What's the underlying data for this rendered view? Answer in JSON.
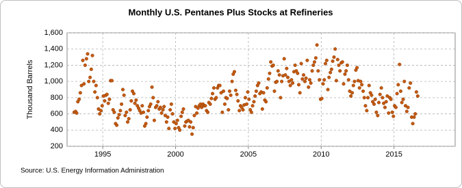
{
  "chart_data": {
    "type": "scatter",
    "title": "Monthly U.S. Pentanes Plus Stocks at Refineries",
    "y_label": "Thousand Barrels",
    "source": "Source: U.S. Energy Information Administration",
    "xlim": [
      1992.55,
      2019.2
    ],
    "xticks": [
      1995,
      2000,
      2005,
      2010,
      2015
    ],
    "ylim": [
      200,
      1600
    ],
    "yticks": [
      200,
      400,
      600,
      800,
      {
        "value": 1000,
        "label": "1,000"
      },
      {
        "value": 1200,
        "label": "1,200"
      },
      {
        "value": 1400,
        "label": "1,400"
      },
      {
        "value": 1600,
        "label": "1,600"
      }
    ],
    "grid": true,
    "color": "#c55a11",
    "x": [
      1993.04,
      1993.13,
      1993.21,
      1993.29,
      1993.38,
      1993.46,
      1993.54,
      1993.63,
      1993.71,
      1993.79,
      1993.88,
      1993.96,
      1994.04,
      1994.13,
      1994.21,
      1994.29,
      1994.38,
      1994.46,
      1994.54,
      1994.63,
      1994.71,
      1994.79,
      1994.88,
      1994.96,
      1995.04,
      1995.13,
      1995.21,
      1995.29,
      1995.38,
      1995.46,
      1995.54,
      1995.63,
      1995.71,
      1995.79,
      1995.88,
      1995.96,
      1996.04,
      1996.13,
      1996.21,
      1996.29,
      1996.38,
      1996.46,
      1996.54,
      1996.63,
      1996.71,
      1996.79,
      1996.88,
      1996.96,
      1997.04,
      1997.13,
      1997.21,
      1997.29,
      1997.38,
      1997.46,
      1997.54,
      1997.63,
      1997.71,
      1997.79,
      1997.88,
      1997.96,
      1998.04,
      1998.13,
      1998.21,
      1998.29,
      1998.38,
      1998.46,
      1998.54,
      1998.63,
      1998.71,
      1998.79,
      1998.88,
      1998.96,
      1999.04,
      1999.13,
      1999.21,
      1999.29,
      1999.38,
      1999.46,
      1999.54,
      1999.63,
      1999.71,
      1999.79,
      1999.88,
      1999.96,
      2000.04,
      2000.13,
      2000.21,
      2000.29,
      2000.38,
      2000.46,
      2000.54,
      2000.63,
      2000.71,
      2000.79,
      2000.88,
      2000.96,
      2001.04,
      2001.13,
      2001.21,
      2001.29,
      2001.38,
      2001.46,
      2001.54,
      2001.63,
      2001.71,
      2001.79,
      2001.88,
      2001.96,
      2002.04,
      2002.13,
      2002.21,
      2002.29,
      2002.38,
      2002.46,
      2002.54,
      2002.63,
      2002.71,
      2002.79,
      2002.88,
      2002.96,
      2003.04,
      2003.13,
      2003.21,
      2003.29,
      2003.38,
      2003.46,
      2003.54,
      2003.63,
      2003.71,
      2003.79,
      2003.88,
      2003.96,
      2004.04,
      2004.13,
      2004.21,
      2004.29,
      2004.38,
      2004.46,
      2004.54,
      2004.63,
      2004.71,
      2004.79,
      2004.88,
      2004.96,
      2005.04,
      2005.13,
      2005.21,
      2005.29,
      2005.38,
      2005.46,
      2005.54,
      2005.63,
      2005.71,
      2005.79,
      2005.88,
      2005.96,
      2006.04,
      2006.13,
      2006.21,
      2006.29,
      2006.38,
      2006.46,
      2006.54,
      2006.63,
      2006.71,
      2006.79,
      2006.88,
      2006.96,
      2007.04,
      2007.13,
      2007.21,
      2007.29,
      2007.38,
      2007.46,
      2007.54,
      2007.63,
      2007.71,
      2007.79,
      2007.88,
      2007.96,
      2008.04,
      2008.13,
      2008.21,
      2008.29,
      2008.38,
      2008.46,
      2008.54,
      2008.63,
      2008.71,
      2008.79,
      2008.88,
      2008.96,
      2009.04,
      2009.13,
      2009.21,
      2009.29,
      2009.38,
      2009.46,
      2009.54,
      2009.63,
      2009.71,
      2009.79,
      2009.88,
      2009.96,
      2010.04,
      2010.13,
      2010.21,
      2010.29,
      2010.38,
      2010.46,
      2010.54,
      2010.63,
      2010.71,
      2010.79,
      2010.88,
      2010.96,
      2011.04,
      2011.13,
      2011.21,
      2011.29,
      2011.38,
      2011.46,
      2011.54,
      2011.63,
      2011.71,
      2011.79,
      2011.88,
      2011.96,
      2012.04,
      2012.13,
      2012.21,
      2012.29,
      2012.38,
      2012.46,
      2012.54,
      2012.63,
      2012.71,
      2012.79,
      2012.88,
      2012.96,
      2013.04,
      2013.13,
      2013.21,
      2013.29,
      2013.38,
      2013.46,
      2013.54,
      2013.63,
      2013.71,
      2013.79,
      2013.88,
      2013.96,
      2014.04,
      2014.13,
      2014.21,
      2014.29,
      2014.38,
      2014.46,
      2014.54,
      2014.63,
      2014.71,
      2014.79,
      2014.88,
      2014.96,
      2015.04,
      2015.13,
      2015.21,
      2015.29,
      2015.38,
      2015.46,
      2015.54,
      2015.63,
      2015.71,
      2015.79,
      2015.88,
      2015.96,
      2016.04,
      2016.13,
      2016.21,
      2016.29,
      2016.38,
      2016.46,
      2016.54,
      2016.63
    ],
    "values": [
      620,
      630,
      610,
      750,
      780,
      860,
      950,
      1260,
      970,
      1200,
      1280,
      1340,
      1000,
      1050,
      1150,
      1320,
      1000,
      870,
      950,
      800,
      660,
      600,
      640,
      700,
      820,
      760,
      830,
      840,
      730,
      780,
      1010,
      1010,
      650,
      620,
      480,
      460,
      550,
      590,
      640,
      720,
      900,
      830,
      580,
      620,
      500,
      540,
      650,
      760,
      880,
      850,
      730,
      770,
      700,
      670,
      640,
      610,
      700,
      620,
      450,
      480,
      560,
      640,
      690,
      720,
      930,
      800,
      520,
      680,
      700,
      750,
      660,
      680,
      610,
      650,
      690,
      580,
      500,
      560,
      420,
      650,
      720,
      600,
      500,
      420,
      480,
      520,
      430,
      400,
      570,
      620,
      660,
      450,
      500,
      510,
      520,
      440,
      500,
      350,
      430,
      580,
      690,
      610,
      670,
      700,
      720,
      680,
      720,
      700,
      700,
      640,
      620,
      740,
      720,
      790,
      850,
      920,
      780,
      800,
      920,
      950,
      950,
      860,
      620,
      880,
      720,
      800,
      790,
      650,
      880,
      830,
      1000,
      1090,
      1120,
      890,
      840,
      760,
      640,
      700,
      680,
      650,
      710,
      800,
      720,
      870,
      780,
      650,
      620,
      700,
      750,
      820,
      880,
      950,
      980,
      850,
      870,
      660,
      860,
      770,
      750,
      920,
      1030,
      1100,
      1240,
      1190,
      1200,
      880,
      990,
      1000,
      1130,
      1080,
      800,
      1000,
      1070,
      1280,
      1080,
      1160,
      1050,
      1000,
      950,
      1020,
      980,
      1120,
      1200,
      1130,
      1100,
      960,
      860,
      1220,
      1030,
      1080,
      1000,
      1040,
      1260,
      930,
      1020,
      980,
      1130,
      1200,
      1240,
      1290,
      1450,
      1130,
      1020,
      780,
      790,
      970,
      1020,
      1220,
      1260,
      900,
      1050,
      1110,
      1150,
      1250,
      1300,
      1400,
      1010,
      1270,
      1200,
      1130,
      1230,
      1240,
      970,
      1090,
      1130,
      1200,
      1020,
      880,
      820,
      860,
      950,
      1000,
      1140,
      1170,
      1010,
      920,
      1000,
      960,
      880,
      800,
      700,
      640,
      800,
      950,
      860,
      830,
      750,
      720,
      780,
      620,
      580,
      740,
      840,
      920,
      800,
      730,
      680,
      750,
      820,
      610,
      800,
      780,
      620,
      570,
      700,
      680,
      850,
      960,
      1210,
      880,
      740,
      780,
      1000,
      700,
      630,
      680,
      920,
      980,
      560,
      480,
      560,
      600,
      870,
      820
    ]
  }
}
